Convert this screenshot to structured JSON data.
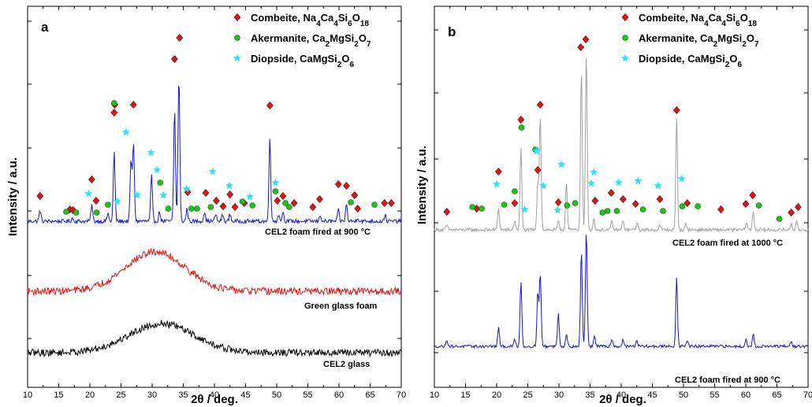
{
  "chart_data": [
    {
      "type": "line",
      "panel_label": "a",
      "xlabel": "2θ / deg.",
      "ylabel": "Intensity / a.u.",
      "xlim": [
        10,
        70
      ],
      "xticks": [
        10,
        15,
        20,
        25,
        30,
        35,
        40,
        45,
        50,
        55,
        60,
        65,
        70
      ],
      "legend": [
        {
          "marker": "diamond",
          "color": "#d01c1c",
          "label": "Combeite, Na4Ca4Si6O18"
        },
        {
          "marker": "circle",
          "color": "#22c022",
          "label": "Akermanite, Ca2MgSi2O7"
        },
        {
          "marker": "star",
          "color": "#33e0f0",
          "label": "Diopside, CaMgSi2O6"
        }
      ],
      "series": [
        {
          "name": "CEL2 foam fired at 900 °C",
          "color": "#1515d8",
          "peaks": [
            [
              12.0,
              14
            ],
            [
              17.2,
              4
            ],
            [
              20.3,
              21
            ],
            [
              22.9,
              10
            ],
            [
              23.9,
              88
            ],
            [
              26.6,
              78
            ],
            [
              27.0,
              99
            ],
            [
              29.9,
              58
            ],
            [
              31.2,
              12
            ],
            [
              33.6,
              144
            ],
            [
              34.3,
              187
            ],
            [
              35.6,
              16
            ],
            [
              38.4,
              12
            ],
            [
              40.2,
              9
            ],
            [
              41.3,
              8
            ],
            [
              42.5,
              9
            ],
            [
              48.9,
              108
            ],
            [
              50.3,
              9
            ],
            [
              51.0,
              12
            ],
            [
              57.0,
              8
            ],
            [
              59.9,
              14
            ],
            [
              61.2,
              22
            ],
            [
              63.0,
              5
            ],
            [
              67.4,
              8
            ]
          ],
          "noise": 2.5,
          "broad_hump": [
            0,
            30,
            6
          ]
        },
        {
          "name": "Green glass foam",
          "color": "#e81010",
          "peaks": [],
          "noise": 4.5,
          "broad_hump": [
            50,
            30.5,
            4.8
          ]
        },
        {
          "name": "CEL2 glass",
          "color": "#000000",
          "peaks": [],
          "noise": 4.5,
          "broad_hump": [
            37,
            31.5,
            5.2
          ]
        }
      ],
      "phase_markers": {
        "combeite_2theta": [
          12.0,
          16.8,
          17.3,
          20.3,
          21.0,
          23.9,
          24.0,
          27.0,
          33.6,
          34.4,
          35.7,
          38.6,
          40.3,
          41.4,
          42.5,
          43.3,
          44.8,
          48.9,
          50.1,
          51.0,
          52.8,
          55.8,
          56.9,
          59.9,
          61.2,
          62.5,
          63.0,
          67.3,
          68.4
        ],
        "akermanite_2theta": [
          16.2,
          17.8,
          21.1,
          22.9,
          23.9,
          31.3,
          32.6,
          36.3,
          37.2,
          39.4,
          44.5,
          46.1,
          49.8,
          51.4,
          52.0,
          61.9,
          65.7
        ],
        "diopside_2theta": [
          19.8,
          24.4,
          25.8,
          27.6,
          29.8,
          30.8,
          31.8,
          35.5,
          39.7,
          42.4,
          45.7,
          49.8
        ]
      }
    },
    {
      "type": "line",
      "panel_label": "b",
      "xlabel": "2θ / deg.",
      "ylabel": "Intensity / a.u.",
      "xlim": [
        10,
        70
      ],
      "xticks": [
        10,
        15,
        20,
        25,
        30,
        35,
        40,
        45,
        50,
        55,
        60,
        65,
        70
      ],
      "legend": [
        {
          "marker": "diamond",
          "color": "#d01c1c",
          "label": "Combeite, Na4Ca4Si6O18"
        },
        {
          "marker": "circle",
          "color": "#22c022",
          "label": "Akermanite, Ca2MgSi2O7"
        },
        {
          "marker": "star",
          "color": "#33e0f0",
          "label": "Diopside, CaMgSi2O6"
        }
      ],
      "series": [
        {
          "name": "CEL2 foam fired at 1000 °C",
          "color": "#a0a0a0",
          "peaks": [
            [
              12.0,
              6
            ],
            [
              20.3,
              28
            ],
            [
              22.9,
              12
            ],
            [
              23.9,
              105
            ],
            [
              26.6,
              58
            ],
            [
              27.0,
              148
            ],
            [
              29.9,
              10
            ],
            [
              31.2,
              62
            ],
            [
              33.6,
              205
            ],
            [
              34.4,
              225
            ],
            [
              35.6,
              14
            ],
            [
              38.5,
              11
            ],
            [
              40.3,
              11
            ],
            [
              42.5,
              9
            ],
            [
              46.2,
              6
            ],
            [
              48.9,
              143
            ],
            [
              50.4,
              8
            ],
            [
              60.1,
              10
            ],
            [
              61.2,
              24
            ],
            [
              67.3,
              8
            ],
            [
              68.2,
              10
            ]
          ],
          "noise": 2.0,
          "broad_hump": [
            0,
            30,
            6
          ]
        },
        {
          "name": "CEL2 foam fired at 900 °C",
          "color": "#1515d8",
          "peaks": [
            [
              12.0,
              9
            ],
            [
              20.3,
              23
            ],
            [
              22.9,
              9
            ],
            [
              23.9,
              83
            ],
            [
              26.6,
              68
            ],
            [
              27.0,
              93
            ],
            [
              29.9,
              42
            ],
            [
              31.2,
              15
            ],
            [
              33.6,
              122
            ],
            [
              34.4,
              149
            ],
            [
              35.7,
              14
            ],
            [
              38.5,
              10
            ],
            [
              40.3,
              9
            ],
            [
              42.5,
              8
            ],
            [
              48.9,
              88
            ],
            [
              50.6,
              8
            ],
            [
              60.0,
              9
            ],
            [
              61.2,
              15
            ],
            [
              67.3,
              6
            ]
          ],
          "noise": 1.8,
          "broad_hump": [
            0,
            30,
            6
          ]
        }
      ],
      "phase_markers": {
        "combeite_2theta": [
          12.0,
          16.8,
          20.3,
          22.9,
          23.9,
          26.6,
          27.0,
          29.9,
          33.5,
          34.3,
          35.8,
          38.4,
          40.3,
          42.3,
          46.2,
          48.9,
          50.6,
          56.0,
          60.0,
          61.1,
          67.3,
          68.4
        ],
        "akermanite_2theta": [
          16.1,
          17.6,
          21.2,
          22.9,
          24.0,
          26.2,
          31.3,
          32.6,
          37.0,
          37.8,
          39.3,
          43.5,
          46.7,
          49.8,
          52.3,
          62.1,
          65.4
        ],
        "diopside_2theta": [
          20.0,
          24.5,
          26.4,
          27.5,
          29.8,
          30.4,
          35.2,
          35.6,
          39.6,
          42.7,
          45.9,
          49.7
        ]
      }
    }
  ]
}
